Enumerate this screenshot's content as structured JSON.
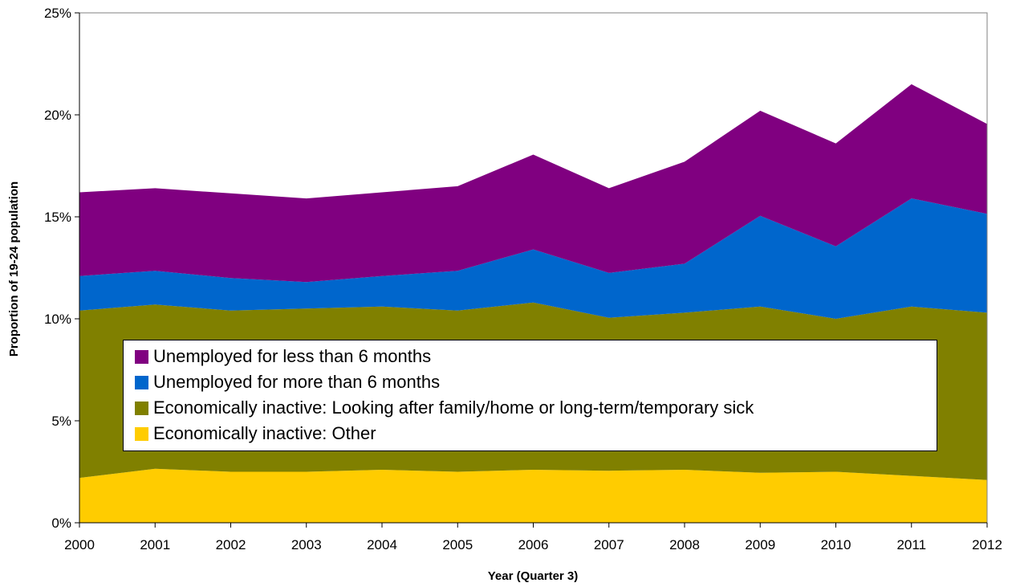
{
  "chart_data": {
    "type": "area",
    "stacked": true,
    "x": [
      "2000",
      "2001",
      "2002",
      "2003",
      "2004",
      "2005",
      "2006",
      "2007",
      "2008",
      "2009",
      "2010",
      "2011",
      "2012"
    ],
    "xlabel": "Year (Quarter 3)",
    "ylabel": "Proportion of 19-24 population",
    "ylim": [
      0,
      25
    ],
    "yticks": [
      "0%",
      "5%",
      "10%",
      "15%",
      "20%",
      "25%"
    ],
    "grid": false,
    "legend_position": "center",
    "series": [
      {
        "name": "Economically inactive: Other",
        "color": "#FFCC00",
        "values": [
          2.2,
          2.65,
          2.5,
          2.5,
          2.6,
          2.5,
          2.6,
          2.55,
          2.6,
          2.45,
          2.5,
          2.3,
          2.1
        ]
      },
      {
        "name": "Economically inactive: Looking after family/home or long-term/temporary sick",
        "color": "#808000",
        "values": [
          8.2,
          8.05,
          7.9,
          8.0,
          8.0,
          7.9,
          8.2,
          7.5,
          7.7,
          8.15,
          7.5,
          8.3,
          8.2
        ]
      },
      {
        "name": "Unemployed for more than 6 months",
        "color": "#0066CC",
        "values": [
          1.7,
          1.65,
          1.6,
          1.3,
          1.5,
          1.95,
          2.6,
          2.2,
          2.4,
          4.45,
          3.55,
          5.3,
          4.85
        ]
      },
      {
        "name": "Unemployed for less than 6 months",
        "color": "#800080",
        "values": [
          4.1,
          4.05,
          4.15,
          4.1,
          4.1,
          4.15,
          4.65,
          4.15,
          5.0,
          5.15,
          5.05,
          5.6,
          4.4
        ]
      }
    ],
    "legend_order": [
      "Unemployed for less than 6 months",
      "Unemployed for more than 6 months",
      "Economically inactive: Looking after family/home or long-term/temporary sick",
      "Economically inactive: Other"
    ]
  }
}
